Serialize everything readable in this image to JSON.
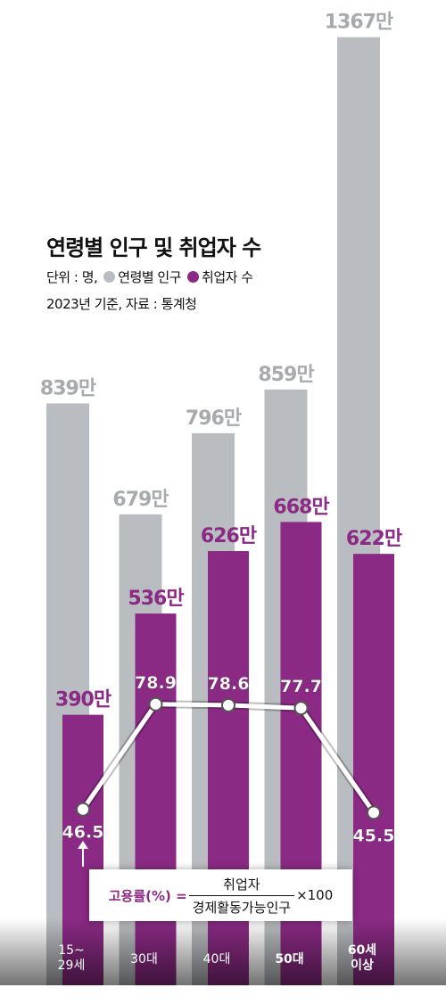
{
  "chart_data": {
    "type": "bar",
    "title": "연령별 인구 및 취업자 수",
    "unit_note": "단위 : 명,",
    "source_note": "2023년 기준, 자료 : 통계청",
    "categories": [
      "15~\n29세",
      "30대",
      "40대",
      "50대",
      "60세\n이상"
    ],
    "series": [
      {
        "name": "연령별 인구",
        "color": "#b9bcc0",
        "label_color": "#a7aaae",
        "values": [
          839,
          679,
          796,
          859,
          1367
        ],
        "value_labels": [
          "839만",
          "679만",
          "796만",
          "859만",
          "1367만"
        ]
      },
      {
        "name": "취업자 수",
        "color": "#8b2a84",
        "label_color": "#8b2a84",
        "values": [
          390,
          536,
          626,
          668,
          622
        ],
        "value_labels": [
          "390만",
          "536만",
          "626만",
          "668만",
          "622만"
        ]
      },
      {
        "type": "line",
        "axis": "y2",
        "color": "#ffffff",
        "values": [
          46.5,
          78.9,
          78.6,
          77.7,
          45.5
        ]
      }
    ],
    "ylim": [
      0,
      1400
    ],
    "y2lim": [
      0,
      100
    ],
    "formula": {
      "label": "고용률(%) =",
      "numerator": "취업자",
      "denominator": "경제활동가능인구",
      "multiplier": "×100"
    }
  }
}
